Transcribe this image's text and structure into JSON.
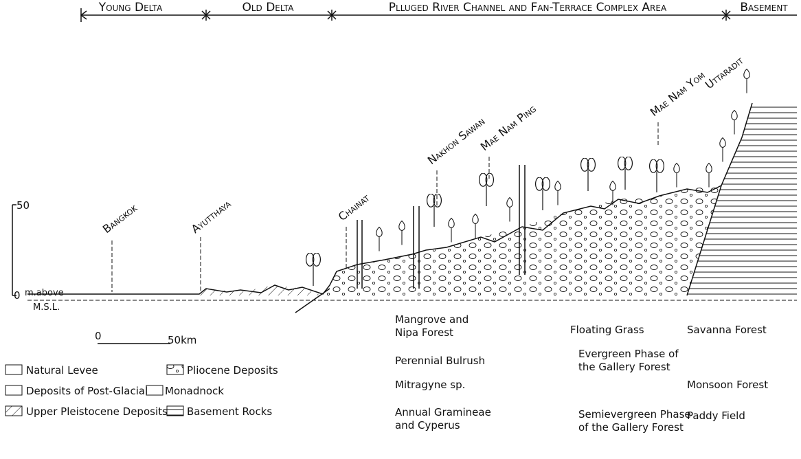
{
  "header": {
    "zones": [
      "Young Delta",
      "Old Delta",
      "Plluged River Channel and Fan-Terrace Complex Area",
      "Basement"
    ]
  },
  "places": [
    "Bangkok",
    "Ayutthaya",
    "Chainat",
    "Nakhon Sawan",
    "Mae Nam Ping",
    "Mae Nam Yom",
    "Uttaradit"
  ],
  "height_scale": {
    "top": "50",
    "bottom": "0",
    "unit": [
      "m.above",
      "M.S.L."
    ]
  },
  "distance_scale": {
    "start": "0",
    "end": "50km"
  },
  "legend": {
    "deposits": [
      "Natural Levee",
      "Pliocene Deposits",
      "Deposits of Post-Glacial",
      "Monadnock",
      "Upper Pleistocene Deposits",
      "Basement Rocks"
    ],
    "vegetation": [
      [
        "Mangrove and",
        "Nipa Forest"
      ],
      [
        "Floating Grass"
      ],
      [
        "Savanna Forest"
      ],
      [
        "Perennial Bulrush"
      ],
      [
        "Evergreen Phase of",
        "the Gallery Forest"
      ],
      [
        "Mitragyne sp."
      ],
      [
        "Monsoon Forest"
      ],
      [
        "Annual Gramineae",
        "and Cyperus"
      ],
      [
        "Semievergreen Phase",
        "of the Gallery Forest"
      ],
      [
        "Paddy Field"
      ]
    ]
  }
}
